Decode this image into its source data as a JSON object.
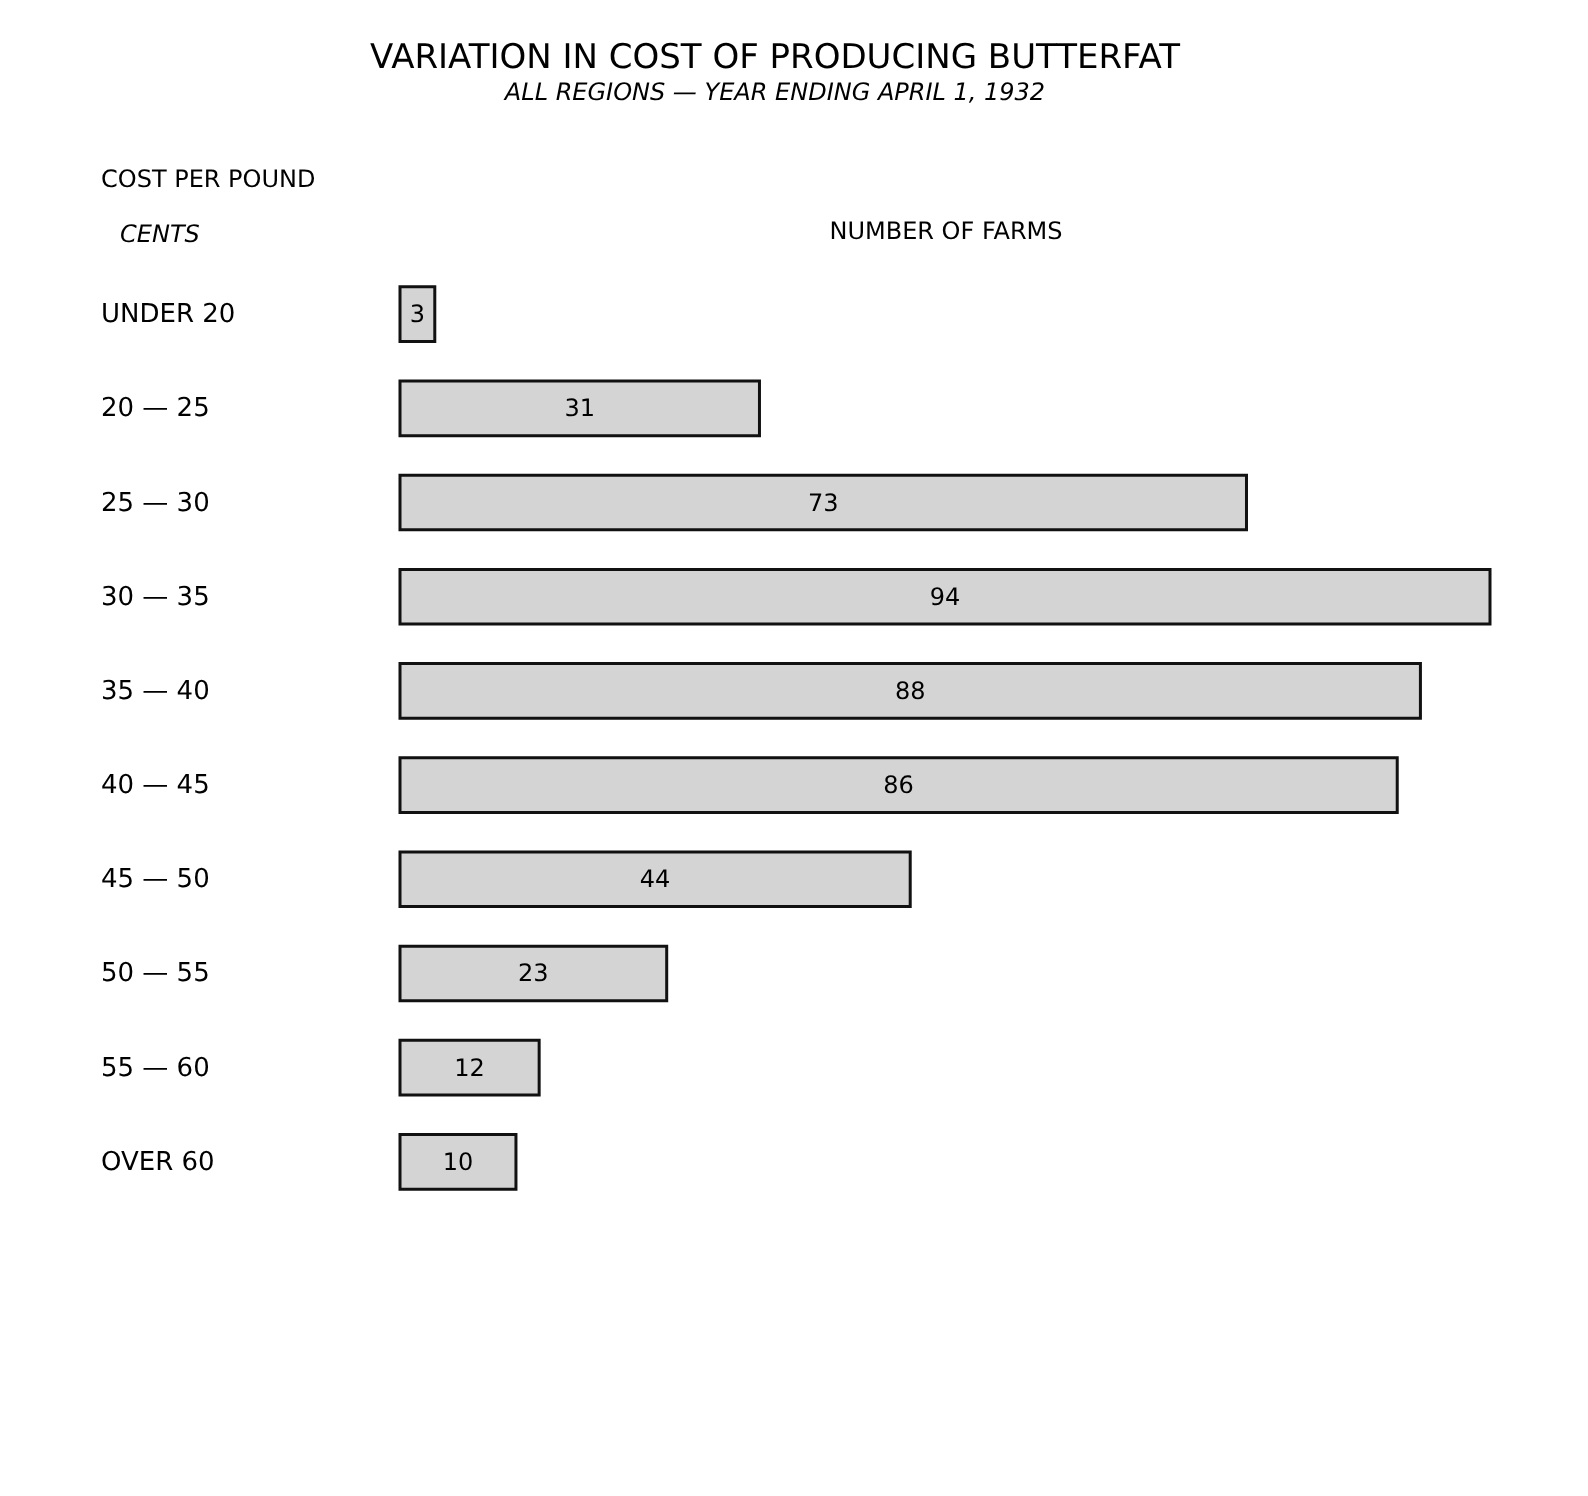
{
  "chart_data": {
    "type": "bar",
    "orientation": "horizontal",
    "title": "VARIATION IN COST OF PRODUCING BUTTERFAT",
    "subtitle": "ALL REGIONS — YEAR ENDING APRIL 1, 1932",
    "ylabel": "COST PER POUND",
    "xlabel": "NUMBER OF FARMS",
    "annotations": [
      "CENTS"
    ],
    "categories": [
      "UNDER 20",
      "20 — 25",
      "25 — 30",
      "30 — 35",
      "35 — 40",
      "40 — 45",
      "45 — 50",
      "50 — 55",
      "55 — 60",
      "OVER 60"
    ],
    "values": [
      3,
      31,
      73,
      94,
      88,
      86,
      44,
      23,
      12,
      10
    ],
    "color": "#d4d4d4",
    "data_labels": true
  }
}
